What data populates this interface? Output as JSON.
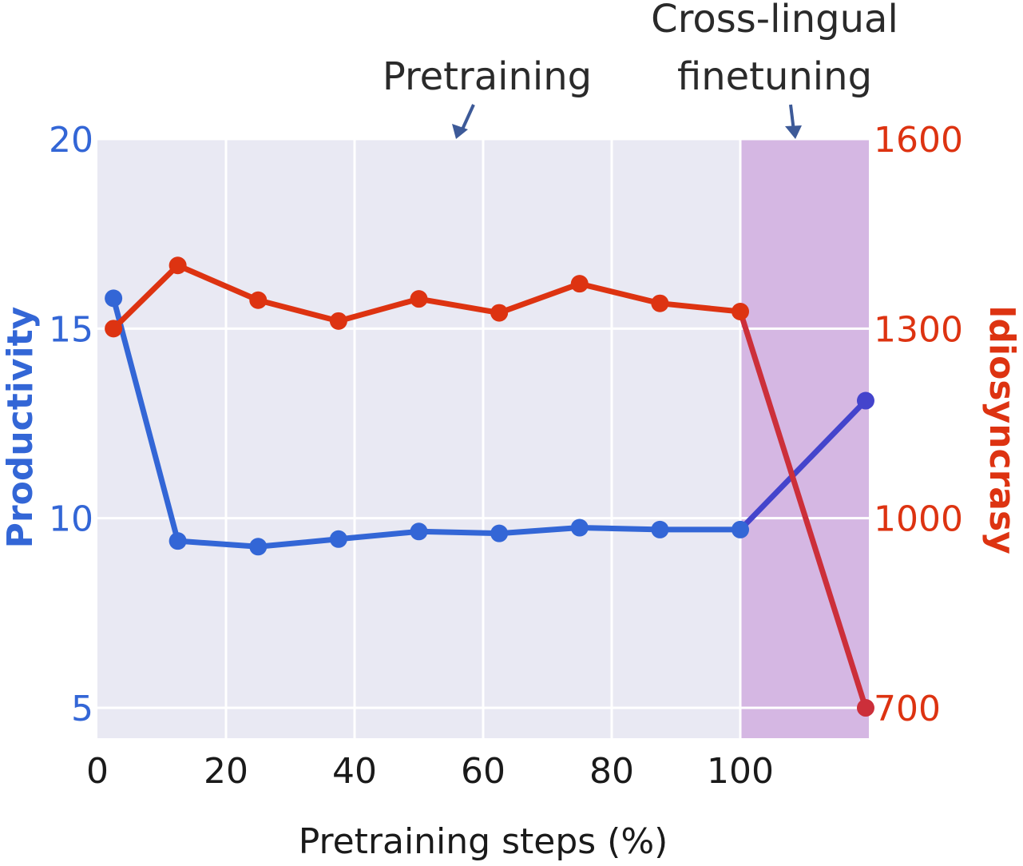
{
  "chart_data": {
    "type": "line",
    "xlabel": "Pretraining steps (%)",
    "ylabel_left": "Productivity",
    "ylabel_right": "Idiosyncrasy",
    "x_ticks": [
      "0",
      "20",
      "40",
      "60",
      "80",
      "100"
    ],
    "y_left_ticks": [
      "5",
      "10",
      "15",
      "20"
    ],
    "y_right_ticks": [
      "700",
      "1000",
      "1300",
      "1600"
    ],
    "xlim": [
      0,
      120
    ],
    "ylim_left": [
      4.2,
      20
    ],
    "ylim_right": [
      652,
      1600
    ],
    "regions": [
      {
        "label": "Pretraining",
        "x_start": 0,
        "x_end": 100,
        "color": "#e9e9f3"
      },
      {
        "label": "Cross-lingual finetuning",
        "x_start": 100,
        "x_end": 120,
        "color": "#d5b7e3"
      }
    ],
    "annotations": [
      {
        "text": "Pretraining",
        "x": 56
      },
      {
        "text_lines": [
          "Cross-lingual",
          "finetuning"
        ],
        "x": 107
      }
    ],
    "series": [
      {
        "name": "Productivity",
        "axis": "left",
        "color": "#3366d6",
        "finetune_color": "#4444cc",
        "x": [
          2.5,
          12.5,
          25,
          37.5,
          50,
          62.5,
          75,
          87.5,
          100,
          119.5
        ],
        "values": [
          15.8,
          9.4,
          9.25,
          9.45,
          9.65,
          9.6,
          9.75,
          9.7,
          9.7,
          13.1
        ]
      },
      {
        "name": "Idiosyncrasy",
        "axis": "right",
        "color": "#dd3311",
        "finetune_color": "#cc2f3a",
        "x": [
          2.5,
          12.5,
          25,
          37.5,
          50,
          62.5,
          75,
          87.5,
          100,
          119.5
        ],
        "values": [
          1300,
          1400,
          1345,
          1312,
          1347,
          1325,
          1371,
          1340,
          1327,
          700
        ]
      }
    ],
    "grid": true,
    "left_axis_color": "#3366d6",
    "right_axis_color": "#dd3311"
  }
}
